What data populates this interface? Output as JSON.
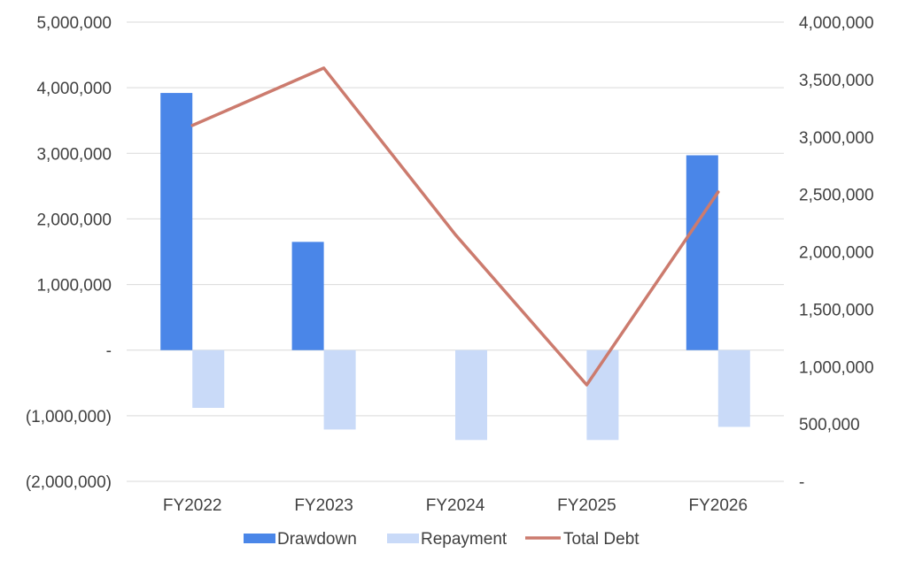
{
  "chart_data": {
    "type": "bar",
    "categories": [
      "FY2022",
      "FY2023",
      "FY2024",
      "FY2025",
      "FY2026"
    ],
    "series": [
      {
        "name": "Drawdown",
        "type": "bar",
        "axis": "left",
        "color": "#4a86e8",
        "values": [
          3920000,
          1650000,
          0,
          0,
          2970000
        ]
      },
      {
        "name": "Repayment",
        "type": "bar",
        "axis": "left",
        "color": "#c9daf8",
        "values": [
          -880000,
          -1210000,
          -1370000,
          -1370000,
          -1170000
        ]
      },
      {
        "name": "Total Debt",
        "type": "line",
        "axis": "right",
        "color": "#cc7b6e",
        "values": [
          3100000,
          3600000,
          2150000,
          840000,
          2520000
        ]
      }
    ],
    "left_axis": {
      "ylim": [
        -2000000,
        5000000
      ],
      "ticks": [
        5000000,
        4000000,
        3000000,
        2000000,
        1000000,
        0,
        -1000000,
        -2000000
      ],
      "tick_labels": [
        "5,000,000",
        "4,000,000",
        "3,000,000",
        "2,000,000",
        "1,000,000",
        "-",
        "(1,000,000)",
        "(2,000,000)"
      ]
    },
    "right_axis": {
      "ylim": [
        0,
        4000000
      ],
      "ticks": [
        4000000,
        3500000,
        3000000,
        2500000,
        2000000,
        1500000,
        1000000,
        500000,
        0
      ],
      "tick_labels": [
        "4,000,000",
        "3,500,000",
        "3,000,000",
        "2,500,000",
        "2,000,000",
        "1,500,000",
        "1,000,000",
        "500,000",
        "-"
      ]
    },
    "title": "",
    "xlabel": "",
    "ylabel": "",
    "grid": true,
    "legend_position": "bottom",
    "gridline_color": "#d9d9d9"
  }
}
